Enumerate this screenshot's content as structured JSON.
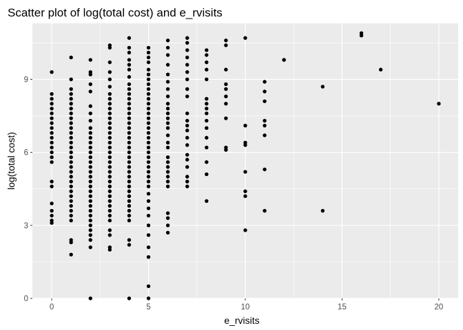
{
  "chart_data": {
    "type": "scatter",
    "title": "Scatter plot of log(total cost) and e_rvisits",
    "xlabel": "e_rvisits",
    "ylabel": "log(total cost)",
    "xlim": [
      -1,
      21
    ],
    "ylim": [
      0,
      11.3
    ],
    "x_ticks": [
      0,
      5,
      10,
      15,
      20
    ],
    "y_ticks": [
      0,
      3,
      6,
      9
    ],
    "grid": true,
    "background": "#ebebeb",
    "grid_color": "#ffffff",
    "point_color": "#000000",
    "points": [
      [
        0,
        9.3
      ],
      [
        0,
        8.4
      ],
      [
        0,
        8.2
      ],
      [
        0,
        8.0
      ],
      [
        0,
        7.8
      ],
      [
        0,
        7.6
      ],
      [
        0,
        7.4
      ],
      [
        0,
        7.2
      ],
      [
        0,
        7.0
      ],
      [
        0,
        6.8
      ],
      [
        0,
        6.6
      ],
      [
        0,
        6.4
      ],
      [
        0,
        6.2
      ],
      [
        0,
        6.0
      ],
      [
        0,
        5.8
      ],
      [
        0,
        5.6
      ],
      [
        0,
        4.8
      ],
      [
        0,
        4.6
      ],
      [
        0,
        3.9
      ],
      [
        0,
        3.6
      ],
      [
        0,
        3.4
      ],
      [
        0,
        3.2
      ],
      [
        0,
        3.1
      ],
      [
        1,
        9.9
      ],
      [
        1,
        9.0
      ],
      [
        1,
        8.6
      ],
      [
        1,
        8.4
      ],
      [
        1,
        8.2
      ],
      [
        1,
        8.0
      ],
      [
        1,
        7.8
      ],
      [
        1,
        7.6
      ],
      [
        1,
        7.4
      ],
      [
        1,
        7.2
      ],
      [
        1,
        7.0
      ],
      [
        1,
        6.8
      ],
      [
        1,
        6.6
      ],
      [
        1,
        6.4
      ],
      [
        1,
        6.2
      ],
      [
        1,
        6.0
      ],
      [
        1,
        5.8
      ],
      [
        1,
        5.6
      ],
      [
        1,
        5.4
      ],
      [
        1,
        5.2
      ],
      [
        1,
        5.0
      ],
      [
        1,
        4.8
      ],
      [
        1,
        4.6
      ],
      [
        1,
        4.4
      ],
      [
        1,
        4.2
      ],
      [
        1,
        4.0
      ],
      [
        1,
        3.8
      ],
      [
        1,
        3.6
      ],
      [
        1,
        3.4
      ],
      [
        1,
        3.2
      ],
      [
        1,
        2.4
      ],
      [
        1,
        2.3
      ],
      [
        1,
        1.8
      ],
      [
        2,
        9.8
      ],
      [
        2,
        9.3
      ],
      [
        2,
        9.2
      ],
      [
        2,
        8.8
      ],
      [
        2,
        8.5
      ],
      [
        2,
        7.9
      ],
      [
        2,
        7.6
      ],
      [
        2,
        7.3
      ],
      [
        2,
        7.0
      ],
      [
        2,
        6.8
      ],
      [
        2,
        6.6
      ],
      [
        2,
        6.4
      ],
      [
        2,
        6.2
      ],
      [
        2,
        6.0
      ],
      [
        2,
        5.8
      ],
      [
        2,
        5.6
      ],
      [
        2,
        5.4
      ],
      [
        2,
        5.2
      ],
      [
        2,
        5.0
      ],
      [
        2,
        4.8
      ],
      [
        2,
        4.6
      ],
      [
        2,
        4.4
      ],
      [
        2,
        4.2
      ],
      [
        2,
        4.0
      ],
      [
        2,
        3.8
      ],
      [
        2,
        3.6
      ],
      [
        2,
        3.4
      ],
      [
        2,
        3.2
      ],
      [
        2,
        3.0
      ],
      [
        2,
        2.8
      ],
      [
        2,
        2.6
      ],
      [
        2,
        2.4
      ],
      [
        2,
        2.1
      ],
      [
        2,
        0.0
      ],
      [
        3,
        10.4
      ],
      [
        3,
        10.3
      ],
      [
        3,
        9.7
      ],
      [
        3,
        9.3
      ],
      [
        3,
        9.0
      ],
      [
        3,
        8.7
      ],
      [
        3,
        8.4
      ],
      [
        3,
        8.2
      ],
      [
        3,
        8.0
      ],
      [
        3,
        7.8
      ],
      [
        3,
        7.6
      ],
      [
        3,
        7.4
      ],
      [
        3,
        7.2
      ],
      [
        3,
        7.0
      ],
      [
        3,
        6.8
      ],
      [
        3,
        6.6
      ],
      [
        3,
        6.4
      ],
      [
        3,
        6.2
      ],
      [
        3,
        6.0
      ],
      [
        3,
        5.8
      ],
      [
        3,
        5.6
      ],
      [
        3,
        5.4
      ],
      [
        3,
        5.2
      ],
      [
        3,
        5.0
      ],
      [
        3,
        4.8
      ],
      [
        3,
        4.6
      ],
      [
        3,
        4.4
      ],
      [
        3,
        4.2
      ],
      [
        3,
        4.0
      ],
      [
        3,
        3.8
      ],
      [
        3,
        3.6
      ],
      [
        3,
        3.4
      ],
      [
        3,
        3.2
      ],
      [
        3,
        2.8
      ],
      [
        3,
        2.6
      ],
      [
        3,
        2.1
      ],
      [
        3,
        2.0
      ],
      [
        4,
        10.7
      ],
      [
        4,
        10.3
      ],
      [
        4,
        10.1
      ],
      [
        4,
        9.8
      ],
      [
        4,
        9.6
      ],
      [
        4,
        9.4
      ],
      [
        4,
        9.1
      ],
      [
        4,
        8.8
      ],
      [
        4,
        8.6
      ],
      [
        4,
        8.4
      ],
      [
        4,
        8.2
      ],
      [
        4,
        8.0
      ],
      [
        4,
        7.8
      ],
      [
        4,
        7.6
      ],
      [
        4,
        7.4
      ],
      [
        4,
        7.2
      ],
      [
        4,
        7.0
      ],
      [
        4,
        6.8
      ],
      [
        4,
        6.6
      ],
      [
        4,
        6.4
      ],
      [
        4,
        6.2
      ],
      [
        4,
        6.0
      ],
      [
        4,
        5.8
      ],
      [
        4,
        5.6
      ],
      [
        4,
        5.4
      ],
      [
        4,
        5.2
      ],
      [
        4,
        5.0
      ],
      [
        4,
        4.8
      ],
      [
        4,
        4.6
      ],
      [
        4,
        4.4
      ],
      [
        4,
        4.2
      ],
      [
        4,
        4.0
      ],
      [
        4,
        3.8
      ],
      [
        4,
        3.6
      ],
      [
        4,
        3.4
      ],
      [
        4,
        3.2
      ],
      [
        4,
        2.4
      ],
      [
        4,
        2.2
      ],
      [
        4,
        0.0
      ],
      [
        5,
        10.3
      ],
      [
        5,
        10.1
      ],
      [
        5,
        9.9
      ],
      [
        5,
        9.7
      ],
      [
        5,
        9.4
      ],
      [
        5,
        9.2
      ],
      [
        5,
        9.0
      ],
      [
        5,
        8.8
      ],
      [
        5,
        8.6
      ],
      [
        5,
        8.4
      ],
      [
        5,
        8.2
      ],
      [
        5,
        8.0
      ],
      [
        5,
        7.8
      ],
      [
        5,
        7.6
      ],
      [
        5,
        7.4
      ],
      [
        5,
        7.2
      ],
      [
        5,
        7.0
      ],
      [
        5,
        6.8
      ],
      [
        5,
        6.6
      ],
      [
        5,
        6.4
      ],
      [
        5,
        6.2
      ],
      [
        5,
        6.0
      ],
      [
        5,
        5.8
      ],
      [
        5,
        5.6
      ],
      [
        5,
        5.4
      ],
      [
        5,
        5.2
      ],
      [
        5,
        5.0
      ],
      [
        5,
        4.8
      ],
      [
        5,
        4.6
      ],
      [
        5,
        4.3
      ],
      [
        5,
        4.0
      ],
      [
        5,
        3.7
      ],
      [
        5,
        3.4
      ],
      [
        5,
        3.0
      ],
      [
        5,
        2.6
      ],
      [
        5,
        2.1
      ],
      [
        5,
        1.7
      ],
      [
        5,
        0.5
      ],
      [
        5,
        0.0
      ],
      [
        6,
        10.6
      ],
      [
        6,
        10.3
      ],
      [
        6,
        10.0
      ],
      [
        6,
        9.6
      ],
      [
        6,
        9.2
      ],
      [
        6,
        8.9
      ],
      [
        6,
        8.6
      ],
      [
        6,
        8.3
      ],
      [
        6,
        8.0
      ],
      [
        6,
        7.8
      ],
      [
        6,
        7.6
      ],
      [
        6,
        7.4
      ],
      [
        6,
        7.2
      ],
      [
        6,
        7.0
      ],
      [
        6,
        6.7
      ],
      [
        6,
        6.4
      ],
      [
        6,
        6.2
      ],
      [
        6,
        5.8
      ],
      [
        6,
        5.6
      ],
      [
        6,
        5.4
      ],
      [
        6,
        5.2
      ],
      [
        6,
        5.0
      ],
      [
        6,
        4.8
      ],
      [
        6,
        4.6
      ],
      [
        6,
        3.5
      ],
      [
        6,
        3.3
      ],
      [
        6,
        3.0
      ],
      [
        6,
        2.7
      ],
      [
        7,
        10.7
      ],
      [
        7,
        10.5
      ],
      [
        7,
        10.2
      ],
      [
        7,
        9.9
      ],
      [
        7,
        9.6
      ],
      [
        7,
        9.3
      ],
      [
        7,
        9.0
      ],
      [
        7,
        8.6
      ],
      [
        7,
        8.3
      ],
      [
        7,
        7.6
      ],
      [
        7,
        7.3
      ],
      [
        7,
        7.1
      ],
      [
        7,
        6.9
      ],
      [
        7,
        6.6
      ],
      [
        7,
        6.3
      ],
      [
        7,
        5.9
      ],
      [
        7,
        5.7
      ],
      [
        7,
        5.4
      ],
      [
        7,
        5.0
      ],
      [
        7,
        4.8
      ],
      [
        7,
        4.6
      ],
      [
        8,
        10.2
      ],
      [
        8,
        10.0
      ],
      [
        8,
        9.7
      ],
      [
        8,
        9.4
      ],
      [
        8,
        9.0
      ],
      [
        8,
        8.2
      ],
      [
        8,
        8.0
      ],
      [
        8,
        7.8
      ],
      [
        8,
        7.6
      ],
      [
        8,
        7.3
      ],
      [
        8,
        7.0
      ],
      [
        8,
        6.6
      ],
      [
        8,
        6.2
      ],
      [
        8,
        5.6
      ],
      [
        8,
        5.1
      ],
      [
        8,
        4.0
      ],
      [
        9,
        10.6
      ],
      [
        9,
        10.4
      ],
      [
        9,
        9.4
      ],
      [
        9,
        8.8
      ],
      [
        9,
        8.6
      ],
      [
        9,
        8.3
      ],
      [
        9,
        8.0
      ],
      [
        9,
        7.4
      ],
      [
        9,
        6.2
      ],
      [
        9,
        6.1
      ],
      [
        10,
        10.7
      ],
      [
        10,
        7.1
      ],
      [
        10,
        6.4
      ],
      [
        10,
        6.3
      ],
      [
        10,
        5.2
      ],
      [
        10,
        4.4
      ],
      [
        10,
        4.2
      ],
      [
        10,
        2.8
      ],
      [
        11,
        8.9
      ],
      [
        11,
        8.5
      ],
      [
        11,
        8.1
      ],
      [
        11,
        7.3
      ],
      [
        11,
        7.1
      ],
      [
        11,
        6.7
      ],
      [
        11,
        5.3
      ],
      [
        11,
        3.6
      ],
      [
        12,
        9.8
      ],
      [
        12,
        9.8
      ],
      [
        14,
        8.7
      ],
      [
        14,
        3.6
      ],
      [
        16,
        10.9
      ],
      [
        16,
        10.8
      ],
      [
        17,
        9.4
      ],
      [
        20,
        8.0
      ]
    ]
  }
}
